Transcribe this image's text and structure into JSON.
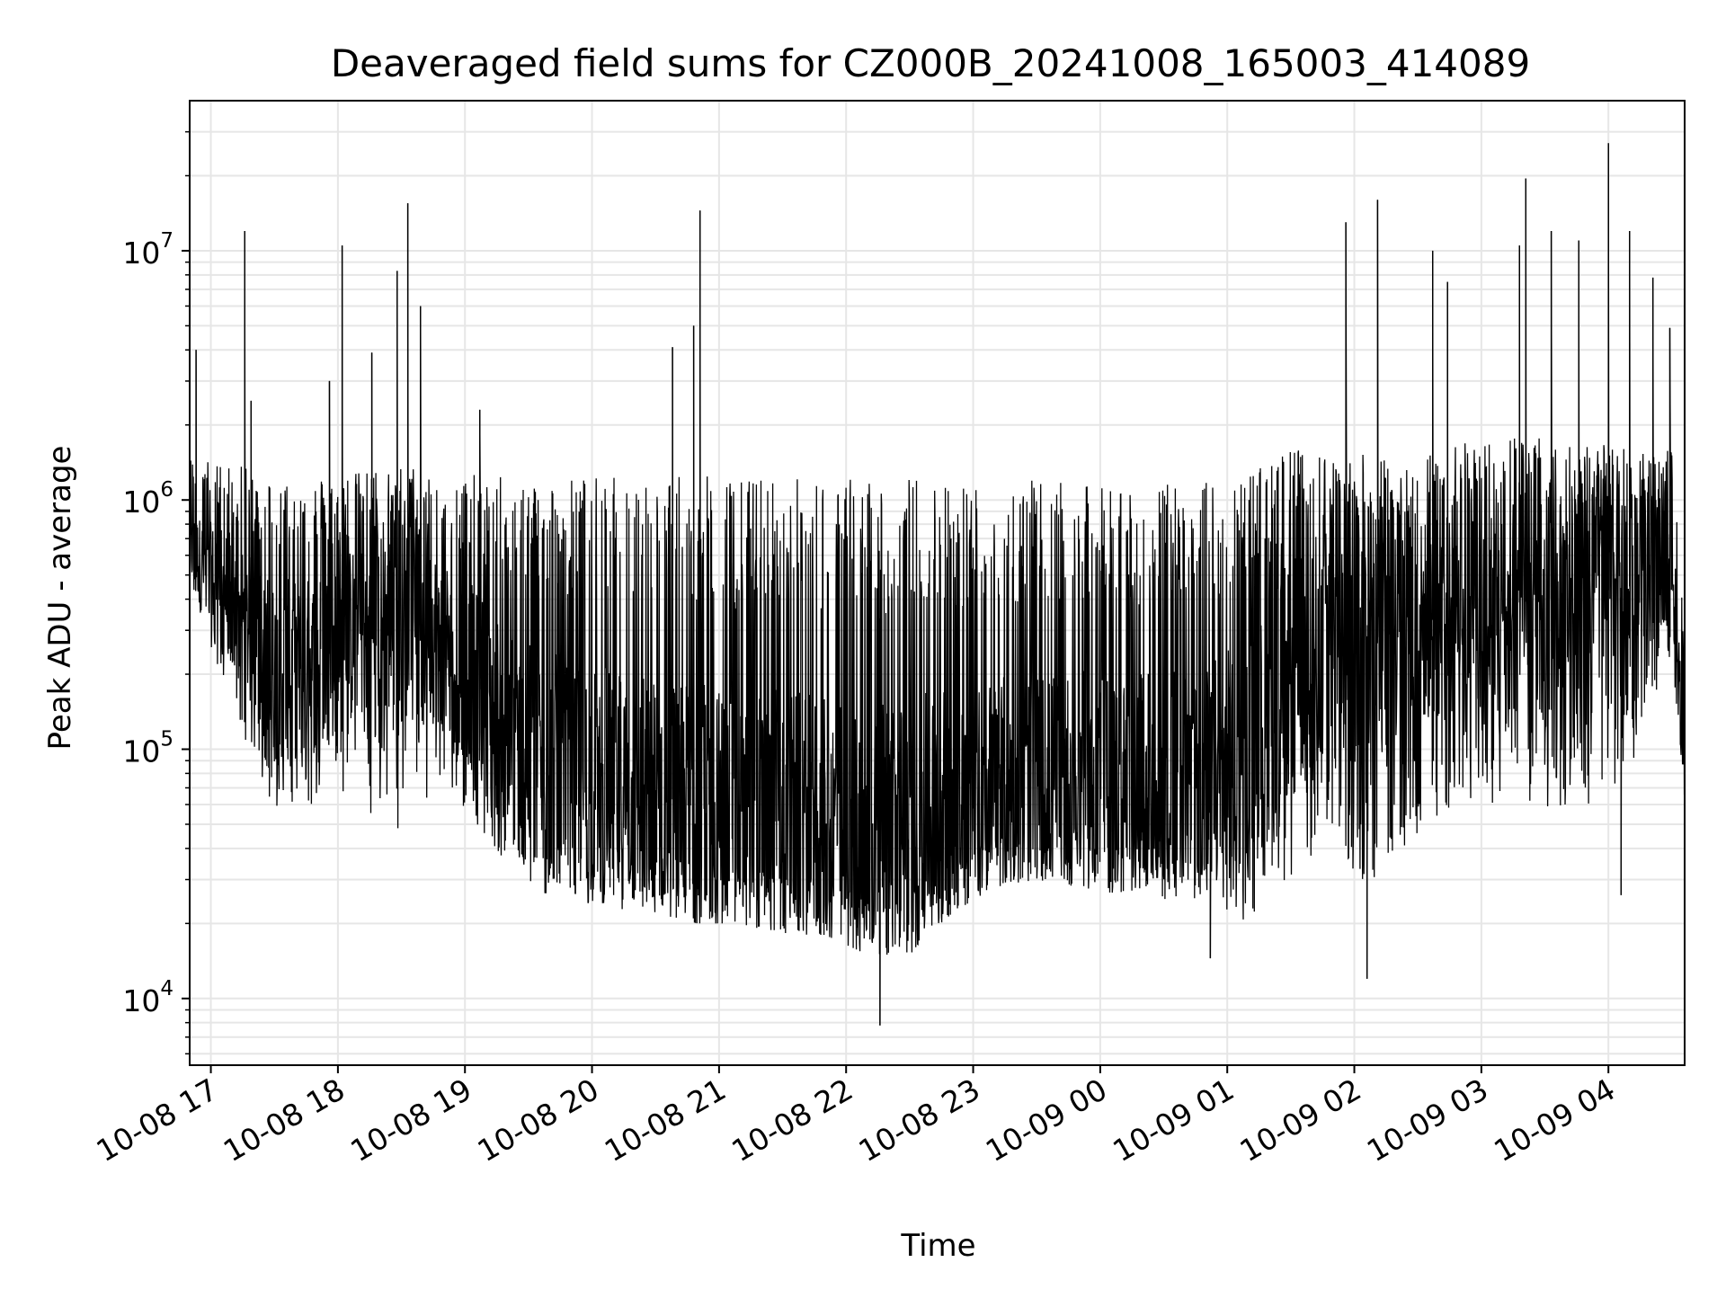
{
  "chart_data": {
    "type": "line",
    "title": "Deaveraged field sums for CZ000B_20241008_165003_414089",
    "xlabel": "Time",
    "ylabel": "Peak ADU - average",
    "yscale": "log",
    "ylim": [
      5400,
      40000000
    ],
    "xlim": [
      "2024-10-08 16:50",
      "2024-10-09 04:36"
    ],
    "grid": true,
    "line_color": "#000000",
    "x_ticks": [
      "2024-10-08 17:00",
      "2024-10-08 18:00",
      "2024-10-08 19:00",
      "2024-10-08 20:00",
      "2024-10-08 21:00",
      "2024-10-08 22:00",
      "2024-10-08 23:00",
      "2024-10-09 00:00",
      "2024-10-09 01:00",
      "2024-10-09 02:00",
      "2024-10-09 03:00",
      "2024-10-09 04:00"
    ],
    "x_tick_labels": [
      "10-08 17",
      "10-08 18",
      "10-08 19",
      "10-08 20",
      "10-08 21",
      "10-08 22",
      "10-08 23",
      "10-09 00",
      "10-09 01",
      "10-09 02",
      "10-09 03",
      "10-09 04"
    ],
    "y_ticks": [
      10000,
      100000,
      1000000,
      10000000
    ],
    "y_tick_labels": [
      {
        "base": "10",
        "exp": "4"
      },
      {
        "base": "10",
        "exp": "5"
      },
      {
        "base": "10",
        "exp": "6"
      },
      {
        "base": "10",
        "exp": "7"
      }
    ],
    "series": [
      {
        "x": [
          "2024-10-08 16:50",
          "2024-10-08 17:10",
          "2024-10-08 17:30",
          "2024-10-08 17:50",
          "2024-10-08 18:10",
          "2024-10-08 18:30",
          "2024-10-08 18:50",
          "2024-10-08 19:10",
          "2024-10-08 19:30",
          "2024-10-08 19:50",
          "2024-10-08 20:10",
          "2024-10-08 20:30",
          "2024-10-08 20:50",
          "2024-10-08 21:10",
          "2024-10-08 21:30",
          "2024-10-08 21:50",
          "2024-10-08 22:10",
          "2024-10-08 22:30",
          "2024-10-08 22:50",
          "2024-10-08 23:10",
          "2024-10-08 23:30",
          "2024-10-08 23:50",
          "2024-10-09 00:10",
          "2024-10-09 00:30",
          "2024-10-09 00:50",
          "2024-10-09 01:10",
          "2024-10-09 01:30",
          "2024-10-09 01:50",
          "2024-10-09 02:10",
          "2024-10-09 02:30",
          "2024-10-09 02:50",
          "2024-10-09 03:10",
          "2024-10-09 03:30",
          "2024-10-09 03:50",
          "2024-10-09 04:10",
          "2024-10-09 04:30",
          "2024-10-09 04:36"
        ],
        "median": [
          650000,
          400000,
          200000,
          220000,
          300000,
          330000,
          280000,
          160000,
          90000,
          80000,
          70000,
          65000,
          60000,
          55000,
          55000,
          50000,
          45000,
          48000,
          60000,
          70000,
          75000,
          75000,
          70000,
          75000,
          80000,
          90000,
          200000,
          300000,
          280000,
          320000,
          350000,
          380000,
          400000,
          420000,
          450000,
          600000,
          80000
        ],
        "low": [
          450000,
          150000,
          55000,
          60000,
          60000,
          45000,
          70000,
          45000,
          25000,
          25000,
          22000,
          22000,
          20000,
          20000,
          18000,
          18000,
          15000,
          15000,
          22000,
          28000,
          30000,
          28000,
          26000,
          25000,
          25000,
          20000,
          30000,
          40000,
          25000,
          45000,
          60000,
          60000,
          55000,
          60000,
          70000,
          250000,
          60000
        ],
        "high": [
          1500000,
          1400000,
          1250000,
          1250000,
          1300000,
          1400000,
          1300000,
          1250000,
          1250000,
          1250000,
          1250000,
          1250000,
          1250000,
          1250000,
          1250000,
          1250000,
          1250000,
          1250000,
          1250000,
          1200000,
          1200000,
          1150000,
          1150000,
          1150000,
          1200000,
          1300000,
          1600000,
          1600000,
          1500000,
          1500000,
          1700000,
          1800000,
          1800000,
          1700000,
          1600000,
          1600000,
          300000
        ],
        "spikes": [
          {
            "x": "2024-10-08 16:53",
            "y": 4000000
          },
          {
            "x": "2024-10-08 17:16",
            "y": 12000000
          },
          {
            "x": "2024-10-08 17:19",
            "y": 2500000
          },
          {
            "x": "2024-10-08 17:56",
            "y": 3000000
          },
          {
            "x": "2024-10-08 18:02",
            "y": 10500000
          },
          {
            "x": "2024-10-08 18:16",
            "y": 3900000
          },
          {
            "x": "2024-10-08 18:28",
            "y": 8300000
          },
          {
            "x": "2024-10-08 18:33",
            "y": 15500000
          },
          {
            "x": "2024-10-08 18:39",
            "y": 6000000
          },
          {
            "x": "2024-10-08 19:07",
            "y": 2300000
          },
          {
            "x": "2024-10-08 20:38",
            "y": 4100000
          },
          {
            "x": "2024-10-08 20:48",
            "y": 5000000
          },
          {
            "x": "2024-10-08 20:51",
            "y": 14500000
          },
          {
            "x": "2024-10-08 22:16",
            "y": 7800
          },
          {
            "x": "2024-10-09 00:52",
            "y": 14500
          },
          {
            "x": "2024-10-09 01:56",
            "y": 13000000
          },
          {
            "x": "2024-10-09 02:06",
            "y": 12000
          },
          {
            "x": "2024-10-09 02:11",
            "y": 16000000
          },
          {
            "x": "2024-10-09 02:37",
            "y": 10000000
          },
          {
            "x": "2024-10-09 02:44",
            "y": 7500000
          },
          {
            "x": "2024-10-09 03:18",
            "y": 10500000
          },
          {
            "x": "2024-10-09 03:21",
            "y": 19500000
          },
          {
            "x": "2024-10-09 03:33",
            "y": 12000000
          },
          {
            "x": "2024-10-09 03:46",
            "y": 11000000
          },
          {
            "x": "2024-10-09 04:00",
            "y": 27000000
          },
          {
            "x": "2024-10-09 04:06",
            "y": 26000
          },
          {
            "x": "2024-10-09 04:10",
            "y": 12000000
          },
          {
            "x": "2024-10-09 04:21",
            "y": 7800000
          },
          {
            "x": "2024-10-09 04:29",
            "y": 4900000
          }
        ]
      }
    ]
  }
}
